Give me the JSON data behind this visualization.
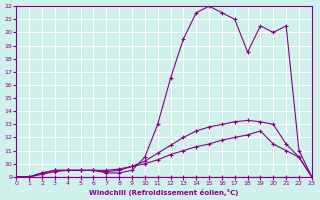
{
  "xlabel": "Windchill (Refroidissement éolien,°C)",
  "xlim": [
    0,
    23
  ],
  "ylim": [
    9,
    22
  ],
  "xticks": [
    0,
    1,
    2,
    3,
    4,
    5,
    6,
    7,
    8,
    9,
    10,
    11,
    12,
    13,
    14,
    15,
    16,
    17,
    18,
    19,
    20,
    21,
    22,
    23
  ],
  "yticks": [
    9,
    10,
    11,
    12,
    13,
    14,
    15,
    16,
    17,
    18,
    19,
    20,
    21,
    22
  ],
  "background_color": "#cff0eb",
  "grid_color": "#ffffff",
  "line_color": "#880088",
  "lines": [
    {
      "x": [
        0,
        1,
        2,
        3,
        4,
        5,
        6,
        7,
        8,
        9,
        10,
        11,
        12,
        13,
        14,
        15,
        16,
        17,
        18,
        19,
        20,
        21,
        22,
        23
      ],
      "y": [
        9.0,
        9.0,
        9.0,
        9.0,
        9.0,
        9.0,
        9.0,
        9.0,
        9.0,
        9.0,
        9.0,
        9.0,
        9.0,
        9.0,
        9.0,
        9.0,
        9.0,
        9.0,
        9.0,
        9.0,
        9.0,
        9.0,
        9.0,
        9.0
      ]
    },
    {
      "x": [
        0,
        1,
        2,
        3,
        4,
        5,
        6,
        7,
        8,
        9,
        10,
        11,
        12,
        13,
        14,
        15,
        16,
        17,
        18,
        19,
        20,
        21,
        22,
        23
      ],
      "y": [
        9.0,
        9.0,
        9.2,
        9.4,
        9.5,
        9.5,
        9.5,
        9.5,
        9.6,
        9.8,
        10.0,
        10.3,
        10.7,
        11.0,
        11.3,
        11.5,
        11.8,
        12.0,
        12.2,
        12.5,
        11.5,
        11.0,
        10.5,
        9.0
      ]
    },
    {
      "x": [
        0,
        1,
        2,
        3,
        4,
        5,
        6,
        7,
        8,
        9,
        10,
        11,
        12,
        13,
        14,
        15,
        16,
        17,
        18,
        19,
        20,
        21,
        22,
        23
      ],
      "y": [
        9.0,
        9.0,
        9.3,
        9.5,
        9.5,
        9.5,
        9.5,
        9.4,
        9.5,
        9.8,
        10.2,
        10.8,
        11.4,
        12.0,
        12.5,
        12.8,
        13.0,
        13.2,
        13.3,
        13.2,
        13.0,
        11.5,
        10.5,
        9.0
      ]
    },
    {
      "x": [
        0,
        1,
        2,
        3,
        4,
        5,
        6,
        7,
        8,
        9,
        10,
        11,
        12,
        13,
        14,
        15,
        16,
        17,
        18,
        19,
        20,
        21,
        22,
        23
      ],
      "y": [
        9.0,
        9.0,
        9.3,
        9.5,
        9.5,
        9.5,
        9.5,
        9.3,
        9.3,
        9.5,
        10.5,
        13.0,
        16.5,
        19.5,
        21.5,
        22.0,
        21.5,
        21.0,
        18.5,
        20.5,
        20.0,
        20.5,
        11.0,
        9.0
      ]
    }
  ]
}
